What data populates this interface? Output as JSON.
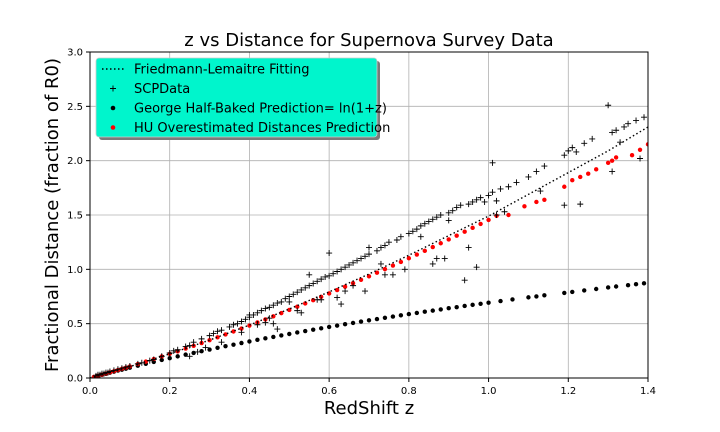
{
  "chart_data": {
    "type": "scatter",
    "title": "z vs Distance for Supernova Survey Data",
    "xlabel": "RedShift z",
    "ylabel": "Fractional Distance (fraction of R0)",
    "xlim": [
      0,
      1.4
    ],
    "ylim": [
      0,
      3.0
    ],
    "xticks": [
      0.0,
      0.2,
      0.4,
      0.6,
      0.8,
      1.0,
      1.2,
      1.4
    ],
    "xtick_labels": [
      "0.0",
      "0.2",
      "0.4",
      "0.6",
      "0.8",
      "1.0",
      "1.2",
      "1.4"
    ],
    "yticks": [
      0.0,
      0.5,
      1.0,
      1.5,
      2.0,
      2.5,
      3.0
    ],
    "ytick_labels": [
      "0.0",
      "0.5",
      "1.0",
      "1.5",
      "2.0",
      "2.5",
      "3.0"
    ],
    "grid": true,
    "legend_position": "top-left",
    "legend_background": "#00f5cc",
    "series": [
      {
        "name": "Friedmann-Lemaitre Fitting",
        "style": "dotted-line",
        "color": "#000000",
        "x": [
          0.0,
          0.1,
          0.2,
          0.3,
          0.4,
          0.5,
          0.6,
          0.7,
          0.8,
          0.9,
          1.0,
          1.1,
          1.2,
          1.3,
          1.4
        ],
        "y": [
          0.0,
          0.105,
          0.222,
          0.349,
          0.487,
          0.635,
          0.792,
          0.957,
          1.13,
          1.31,
          1.49,
          1.69,
          1.89,
          2.09,
          2.31
        ]
      },
      {
        "name": "SCPData",
        "style": "plus",
        "color": "#000000",
        "x": [
          0.015,
          0.02,
          0.025,
          0.03,
          0.035,
          0.04,
          0.045,
          0.05,
          0.06,
          0.07,
          0.08,
          0.09,
          0.1,
          0.12,
          0.13,
          0.15,
          0.16,
          0.18,
          0.2,
          0.21,
          0.22,
          0.24,
          0.25,
          0.26,
          0.28,
          0.3,
          0.31,
          0.32,
          0.33,
          0.35,
          0.36,
          0.37,
          0.38,
          0.39,
          0.4,
          0.41,
          0.42,
          0.43,
          0.44,
          0.45,
          0.46,
          0.47,
          0.48,
          0.49,
          0.5,
          0.51,
          0.52,
          0.53,
          0.54,
          0.55,
          0.56,
          0.57,
          0.58,
          0.59,
          0.6,
          0.61,
          0.62,
          0.63,
          0.64,
          0.65,
          0.66,
          0.67,
          0.68,
          0.69,
          0.7,
          0.72,
          0.73,
          0.74,
          0.75,
          0.77,
          0.78,
          0.8,
          0.81,
          0.82,
          0.83,
          0.84,
          0.85,
          0.86,
          0.87,
          0.88,
          0.9,
          0.91,
          0.92,
          0.93,
          0.95,
          0.96,
          0.97,
          0.98,
          1.0,
          1.01,
          1.02,
          1.03,
          1.05,
          1.07,
          1.1,
          1.12,
          1.14,
          1.19,
          1.2,
          1.21,
          1.24,
          1.26,
          1.3,
          1.31,
          1.32,
          1.34,
          1.35,
          1.37,
          1.39,
          0.25,
          0.27,
          0.29,
          0.33,
          0.38,
          0.4,
          0.42,
          0.44,
          0.45,
          0.47,
          0.5,
          0.52,
          0.55,
          0.57,
          0.6,
          0.62,
          0.64,
          0.66,
          0.7,
          0.73,
          0.76,
          0.79,
          0.83,
          0.87,
          0.9,
          0.94,
          0.97,
          1.01,
          1.04,
          1.13,
          1.19,
          1.23,
          1.31,
          1.38,
          0.46,
          0.53,
          0.58,
          0.63,
          0.69,
          0.74,
          0.86,
          0.89,
          0.95,
          0.99,
          1.02,
          1.22,
          1.33
        ],
        "y": [
          0.02,
          0.03,
          0.03,
          0.04,
          0.04,
          0.05,
          0.05,
          0.06,
          0.07,
          0.08,
          0.09,
          0.1,
          0.11,
          0.13,
          0.14,
          0.16,
          0.17,
          0.2,
          0.23,
          0.25,
          0.26,
          0.29,
          0.3,
          0.33,
          0.36,
          0.39,
          0.41,
          0.43,
          0.44,
          0.47,
          0.49,
          0.5,
          0.52,
          0.54,
          0.56,
          0.58,
          0.6,
          0.62,
          0.64,
          0.65,
          0.67,
          0.69,
          0.7,
          0.73,
          0.75,
          0.77,
          0.79,
          0.81,
          0.83,
          0.85,
          0.87,
          0.89,
          0.91,
          0.93,
          0.94,
          0.96,
          0.98,
          1.0,
          1.02,
          1.04,
          1.06,
          1.08,
          1.1,
          1.12,
          1.14,
          1.17,
          1.2,
          1.22,
          1.25,
          1.27,
          1.3,
          1.33,
          1.35,
          1.37,
          1.4,
          1.42,
          1.44,
          1.46,
          1.48,
          1.5,
          1.52,
          1.54,
          1.57,
          1.59,
          1.6,
          1.62,
          1.64,
          1.66,
          1.68,
          1.71,
          1.63,
          1.74,
          1.76,
          1.8,
          1.85,
          1.9,
          1.95,
          2.05,
          2.09,
          2.12,
          2.16,
          2.2,
          2.51,
          2.26,
          2.28,
          2.31,
          2.34,
          2.37,
          2.4,
          0.2,
          0.24,
          0.28,
          0.33,
          0.42,
          0.58,
          0.49,
          0.51,
          0.55,
          0.45,
          0.7,
          0.62,
          0.95,
          0.72,
          1.15,
          0.74,
          0.8,
          0.85,
          1.2,
          1.05,
          0.95,
          1.0,
          1.3,
          1.1,
          1.45,
          0.9,
          1.02,
          1.98,
          1.53,
          1.72,
          1.59,
          1.6,
          1.9,
          2.02,
          0.5,
          0.6,
          0.72,
          0.68,
          0.8,
          0.95,
          1.05,
          1.1,
          1.2,
          1.62,
          1.5,
          2.08,
          2.17
        ]
      },
      {
        "name": "George Half-Baked Prediction= ln(1+z)",
        "style": "dot",
        "color": "#000000",
        "x": [
          0.01,
          0.02,
          0.03,
          0.04,
          0.05,
          0.06,
          0.07,
          0.08,
          0.09,
          0.1,
          0.12,
          0.14,
          0.16,
          0.18,
          0.2,
          0.22,
          0.24,
          0.26,
          0.28,
          0.3,
          0.32,
          0.34,
          0.36,
          0.38,
          0.4,
          0.42,
          0.44,
          0.46,
          0.48,
          0.5,
          0.52,
          0.54,
          0.56,
          0.58,
          0.6,
          0.62,
          0.64,
          0.66,
          0.68,
          0.7,
          0.72,
          0.74,
          0.76,
          0.78,
          0.8,
          0.82,
          0.84,
          0.86,
          0.88,
          0.9,
          0.92,
          0.94,
          0.96,
          0.98,
          1.0,
          1.03,
          1.06,
          1.1,
          1.12,
          1.14,
          1.19,
          1.21,
          1.24,
          1.27,
          1.3,
          1.32,
          1.35,
          1.37,
          1.39
        ],
        "y": [
          0.01,
          0.02,
          0.03,
          0.039,
          0.049,
          0.058,
          0.068,
          0.077,
          0.086,
          0.095,
          0.113,
          0.131,
          0.148,
          0.166,
          0.182,
          0.199,
          0.215,
          0.231,
          0.247,
          0.262,
          0.278,
          0.293,
          0.307,
          0.322,
          0.336,
          0.351,
          0.365,
          0.378,
          0.392,
          0.405,
          0.419,
          0.432,
          0.445,
          0.457,
          0.47,
          0.482,
          0.495,
          0.507,
          0.519,
          0.531,
          0.542,
          0.554,
          0.565,
          0.577,
          0.588,
          0.599,
          0.61,
          0.62,
          0.631,
          0.642,
          0.652,
          0.663,
          0.673,
          0.683,
          0.693,
          0.708,
          0.723,
          0.742,
          0.751,
          0.761,
          0.783,
          0.792,
          0.806,
          0.819,
          0.833,
          0.842,
          0.854,
          0.863,
          0.871
        ]
      },
      {
        "name": "HU Overestimated Distances Prediction",
        "style": "dot",
        "color": "#ff0000",
        "x": [
          0.01,
          0.02,
          0.03,
          0.04,
          0.05,
          0.06,
          0.07,
          0.08,
          0.09,
          0.1,
          0.12,
          0.14,
          0.16,
          0.18,
          0.2,
          0.22,
          0.24,
          0.26,
          0.28,
          0.3,
          0.32,
          0.34,
          0.36,
          0.38,
          0.4,
          0.42,
          0.44,
          0.46,
          0.48,
          0.5,
          0.52,
          0.54,
          0.56,
          0.58,
          0.6,
          0.62,
          0.64,
          0.66,
          0.68,
          0.7,
          0.72,
          0.74,
          0.76,
          0.78,
          0.8,
          0.82,
          0.84,
          0.86,
          0.88,
          0.9,
          0.92,
          0.94,
          0.96,
          0.98,
          1.0,
          1.02,
          1.05,
          1.09,
          1.12,
          1.14,
          1.19,
          1.21,
          1.23,
          1.25,
          1.27,
          1.3,
          1.31,
          1.32,
          1.36,
          1.38,
          1.4
        ],
        "y": [
          0.01,
          0.02,
          0.03,
          0.041,
          0.051,
          0.062,
          0.073,
          0.084,
          0.095,
          0.106,
          0.128,
          0.151,
          0.174,
          0.198,
          0.222,
          0.246,
          0.271,
          0.296,
          0.322,
          0.348,
          0.374,
          0.401,
          0.428,
          0.455,
          0.483,
          0.511,
          0.539,
          0.568,
          0.597,
          0.626,
          0.656,
          0.686,
          0.716,
          0.747,
          0.778,
          0.809,
          0.84,
          0.872,
          0.904,
          0.936,
          0.969,
          1.002,
          1.035,
          1.068,
          1.102,
          1.136,
          1.17,
          1.205,
          1.24,
          1.275,
          1.31,
          1.346,
          1.382,
          1.418,
          1.455,
          1.492,
          1.5,
          1.58,
          1.62,
          1.64,
          1.76,
          1.82,
          1.85,
          1.88,
          1.92,
          1.98,
          2.0,
          2.03,
          2.05,
          2.1,
          2.15
        ]
      }
    ]
  }
}
